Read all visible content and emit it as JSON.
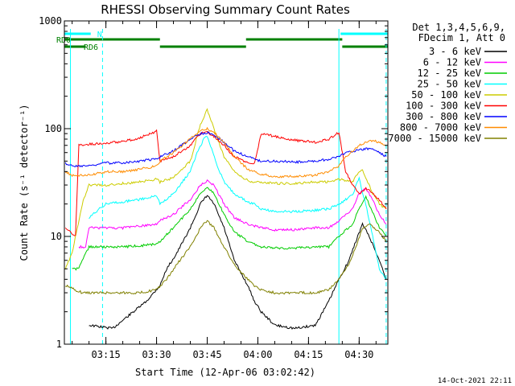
{
  "chart_data": {
    "type": "line",
    "title": "RHESSI Observing Summary Count Rates",
    "xlabel": "Start Time (12-Apr-06 03:02:42)",
    "ylabel": "Count Rate (s⁻¹ detector⁻¹)",
    "y_scale": "log",
    "ylim": [
      1,
      1000
    ],
    "y_ticks": [
      "1",
      "10",
      "100",
      "1000"
    ],
    "xlim": [
      "03:02:42",
      "04:38:30"
    ],
    "x_ticks": [
      "03:15",
      "03:30",
      "03:45",
      "04:00",
      "04:15",
      "04:30"
    ],
    "legend_header": [
      "Det 1,3,4,5,6,9,",
      "FDecim 1, Att 0"
    ],
    "legend_position": "right",
    "series": [
      {
        "name": "3 - 6 keV",
        "color": "#000000",
        "x": [
          "03:10",
          "03:17",
          "03:27",
          "03:31",
          "03:33",
          "03:36",
          "03:40",
          "03:43",
          "03:45",
          "03:47",
          "03:50",
          "03:53",
          "03:57",
          "03:59",
          "04:01",
          "04:05",
          "04:11",
          "04:17",
          "04:21",
          "04:24",
          "04:27",
          "04:29",
          "04:31",
          "04:33",
          "04:36",
          "04:38"
        ],
        "values": [
          1.5,
          1.4,
          2.5,
          3.5,
          5,
          7,
          12,
          20,
          24,
          20,
          12,
          6,
          3.5,
          2.5,
          2,
          1.5,
          1.4,
          1.5,
          2.5,
          4,
          6,
          9,
          13,
          10,
          6,
          4
        ]
      },
      {
        "name": "6 - 12 keV",
        "color": "#ff00ff",
        "x": [
          "03:07",
          "03:09",
          "03:10",
          "03:15",
          "03:20",
          "03:25",
          "03:30",
          "03:31",
          "03:35",
          "03:40",
          "03:43",
          "03:45",
          "03:47",
          "03:50",
          "03:53",
          "03:57",
          "03:59",
          "04:01",
          "04:05",
          "04:11",
          "04:17",
          "04:21",
          "04:24",
          "04:28",
          "04:30",
          "04:32",
          "04:34",
          "04:36",
          "04:38"
        ],
        "values": [
          8,
          8,
          12,
          12,
          12,
          12.5,
          13,
          14,
          16,
          22,
          30,
          33,
          30,
          20,
          15,
          13,
          12.5,
          12,
          11.5,
          11.5,
          12,
          12,
          14,
          18,
          25,
          28,
          22,
          16,
          13
        ]
      },
      {
        "name": "12 - 25 keV",
        "color": "#00cc00",
        "x": [
          "03:05",
          "03:07",
          "03:08",
          "03:10",
          "03:15",
          "03:20",
          "03:25",
          "03:30",
          "03:31",
          "03:35",
          "03:40",
          "03:43",
          "03:45",
          "03:47",
          "03:50",
          "03:53",
          "03:57",
          "03:59",
          "04:01",
          "04:05",
          "04:11",
          "04:17",
          "04:21",
          "04:24",
          "04:28",
          "04:30",
          "04:32",
          "04:34",
          "04:36",
          "04:38"
        ],
        "values": [
          5,
          5,
          6,
          8,
          8,
          8,
          8.2,
          8.5,
          9,
          12,
          18,
          25,
          29,
          25,
          16,
          11,
          9,
          8.5,
          8,
          7.8,
          7.8,
          8,
          8,
          10,
          13,
          18,
          23,
          17,
          12,
          10
        ]
      },
      {
        "name": "25 - 50 keV",
        "color": "#00ffff",
        "x": [
          "03:10",
          "03:14",
          "03:15",
          "03:20",
          "03:25",
          "03:30",
          "03:31",
          "03:35",
          "03:40",
          "03:42",
          "03:44",
          "03:45",
          "03:46",
          "03:48",
          "03:50",
          "03:53",
          "03:57",
          "03:59",
          "04:01",
          "04:05",
          "04:11",
          "04:17",
          "04:21",
          "04:24",
          "04:28",
          "04:30",
          "04:31",
          "04:32",
          "04:34",
          "04:36",
          "04:38"
        ],
        "values": [
          15,
          19,
          20,
          21,
          22,
          24,
          20,
          25,
          40,
          60,
          80,
          85,
          70,
          45,
          32,
          25,
          21,
          20,
          18,
          17,
          17,
          17.5,
          18,
          20,
          24,
          35,
          25,
          20,
          10,
          5,
          4
        ]
      },
      {
        "name": "50 - 100 keV",
        "color": "#cccc00",
        "x": [
          "03:03",
          "03:05",
          "03:08",
          "03:10",
          "03:15",
          "03:20",
          "03:25",
          "03:30",
          "03:31",
          "03:35",
          "03:40",
          "03:43",
          "03:45",
          "03:47",
          "03:50",
          "03:53",
          "03:57",
          "03:59",
          "04:01",
          "04:05",
          "04:11",
          "04:17",
          "04:21",
          "04:24",
          "04:28",
          "04:30",
          "04:31",
          "04:32",
          "04:34",
          "04:36",
          "04:38"
        ],
        "values": [
          5,
          7,
          20,
          30,
          30,
          31,
          32,
          34,
          32,
          35,
          50,
          110,
          150,
          100,
          55,
          40,
          33,
          32,
          32,
          31,
          31,
          32,
          32,
          34,
          32,
          40,
          42,
          35,
          25,
          20,
          18
        ]
      },
      {
        "name": "100 - 300 keV",
        "color": "#ff0000",
        "x": [
          "03:03",
          "03:06",
          "03:07",
          "03:10",
          "03:15",
          "03:20",
          "03:25",
          "03:30",
          "03:31",
          "03:35",
          "03:40",
          "03:43",
          "03:45",
          "03:47",
          "03:50",
          "03:53",
          "03:57",
          "03:59",
          "04:01",
          "04:05",
          "04:11",
          "04:17",
          "04:21",
          "04:24",
          "04:26",
          "04:28",
          "04:30",
          "04:32",
          "04:34",
          "04:36",
          "04:38"
        ],
        "values": [
          12,
          10,
          70,
          72,
          73,
          76,
          82,
          95,
          50,
          55,
          70,
          90,
          92,
          85,
          70,
          55,
          48,
          47,
          90,
          85,
          78,
          75,
          80,
          92,
          40,
          30,
          25,
          28,
          25,
          22,
          18
        ]
      },
      {
        "name": "300 - 800 keV",
        "color": "#0000ff",
        "x": [
          "03:03",
          "03:05",
          "03:10",
          "03:15",
          "03:20",
          "03:25",
          "03:30",
          "03:31",
          "03:35",
          "03:40",
          "03:43",
          "03:45",
          "03:47",
          "03:50",
          "03:53",
          "03:57",
          "03:59",
          "04:01",
          "04:05",
          "04:11",
          "04:17",
          "04:21",
          "04:24",
          "04:26",
          "04:28",
          "04:30",
          "04:32",
          "04:34",
          "04:36",
          "04:38"
        ],
        "values": [
          48,
          45,
          45,
          48,
          48,
          50,
          52,
          55,
          62,
          80,
          90,
          92,
          88,
          75,
          62,
          55,
          52,
          50,
          50,
          49,
          50,
          52,
          55,
          60,
          62,
          63,
          65,
          65,
          60,
          55
        ]
      },
      {
        "name": "800 - 7000 keV",
        "color": "#ff8c00",
        "x": [
          "03:03",
          "03:05",
          "03:10",
          "03:15",
          "03:20",
          "03:25",
          "03:30",
          "03:31",
          "03:35",
          "03:40",
          "03:43",
          "03:45",
          "03:47",
          "03:50",
          "03:53",
          "03:57",
          "03:59",
          "04:01",
          "04:05",
          "04:11",
          "04:17",
          "04:21",
          "04:24",
          "04:26",
          "04:28",
          "04:30",
          "04:32",
          "04:34",
          "04:36",
          "04:38"
        ],
        "values": [
          40,
          37,
          37,
          40,
          40,
          42,
          45,
          50,
          60,
          80,
          95,
          100,
          92,
          75,
          55,
          42,
          40,
          38,
          36,
          36,
          37,
          40,
          45,
          55,
          62,
          70,
          75,
          78,
          75,
          70
        ]
      },
      {
        "name": "7000 - 15000 keV",
        "color": "#808000",
        "x": [
          "03:03",
          "03:08",
          "03:10",
          "03:15",
          "03:20",
          "03:25",
          "03:30",
          "03:33",
          "03:36",
          "03:40",
          "03:43",
          "03:45",
          "03:47",
          "03:50",
          "03:53",
          "03:57",
          "03:59",
          "04:01",
          "04:05",
          "04:11",
          "04:17",
          "04:21",
          "04:24",
          "04:27",
          "04:29",
          "04:31",
          "04:33",
          "04:36",
          "04:38"
        ],
        "values": [
          3.5,
          3,
          3,
          3,
          3,
          3,
          3.2,
          4,
          5.5,
          8,
          12,
          14,
          12,
          8,
          5.5,
          4,
          3.5,
          3.2,
          3,
          3,
          3,
          3.2,
          4,
          5.5,
          8,
          12,
          13,
          11,
          9
        ]
      }
    ],
    "shaded_bars": [
      {
        "label": "N",
        "color": "#00ffff",
        "spans": [
          [
            "03:02:42",
            "03:10:30"
          ],
          [
            "04:24:30",
            "04:38:30"
          ]
        ],
        "level": 0
      },
      {
        "label": "RD0",
        "color": "#008000",
        "spans": [
          [
            "03:02:42",
            "03:31"
          ],
          [
            "03:56:30",
            "04:25"
          ]
        ],
        "level": 1
      },
      {
        "label": "RD6",
        "color": "#008000",
        "spans": [
          [
            "03:02:42",
            "03:09"
          ],
          [
            "03:31",
            "03:56:30"
          ],
          [
            "04:25",
            "04:38:30"
          ]
        ],
        "level": 2
      }
    ],
    "vertical_markers": [
      {
        "time": "03:04:30",
        "color": "#00ffff",
        "style": "solid"
      },
      {
        "time": "03:14",
        "color": "#00ffff",
        "style": "dashed"
      },
      {
        "time": "04:24",
        "color": "#00ffff",
        "style": "solid"
      },
      {
        "time": "04:38",
        "color": "#00ffff",
        "style": "dashed"
      }
    ]
  },
  "footer": {
    "timestamp": "14-Oct-2021 22:11"
  }
}
